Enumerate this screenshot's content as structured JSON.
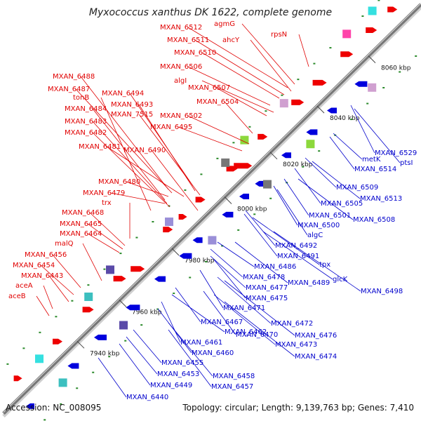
{
  "title": "Myxococcus xanthus DK 1622, complete genome",
  "accession": "Accession: NC_008095",
  "summary": "Topology: circular; Length: 9,139,763 bp; Genes: 7,410",
  "colors": {
    "forward_label": "#e00000",
    "reverse_label": "#0000cc",
    "forward_gene": "#ee0000",
    "reverse_gene": "#0000dd",
    "backbone": "#777777",
    "orf_marker": "#2a8a2a"
  },
  "kbp_ticks": [
    "7940 kbp",
    "7960 kbp",
    "7980 kbp",
    "8000 kbp",
    "8020 kbp",
    "8040 kbp",
    "8060 kbp"
  ],
  "forward_labels": [
    "MXAN_6512",
    "agmG",
    "rpsN",
    "MXAN_6511",
    "ahcY",
    "MXAN_6510",
    "MXAN_6506",
    "algI",
    "MXAN_6507",
    "MXAN_6504",
    "MXAN_6488",
    "MXAN_6487",
    "tonB",
    "MXAN_6494",
    "MXAN_6493",
    "MXAN_7515",
    "MXAN_6502",
    "MXAN_6495",
    "MXAN_6484",
    "MXAN_6483",
    "MXAN_6482",
    "MXAN_6481",
    "MXAN_6490",
    "MXAN_6480",
    "MXAN_6479",
    "trx",
    "MXAN_6468",
    "MXAN_6465",
    "MXAN_6464",
    "malQ",
    "MXAN_6456",
    "MXAN_6454",
    "MXAN_6443",
    "aceA",
    "aceB"
  ],
  "reverse_labels": [
    "MXAN_6529",
    "ptsI",
    "metK",
    "MXAN_6514",
    "MXAN_6509",
    "MXAN_6513",
    "MXAN_6505",
    "MXAN_6501",
    "MXAN_6508",
    "MXAN_6500",
    "algC",
    "MXAN_6492",
    "MXAN_6491",
    "tpx",
    "MXAN_6486",
    "glcK",
    "MXAN_6478",
    "MXAN_6489",
    "MXAN_6498",
    "MXAN_6477",
    "MXAN_6475",
    "MXAN_6471",
    "MXAN_6467",
    "MXAN_6472",
    "MXAN_6462",
    "MXAN_6476",
    "MXAN_6470",
    "MXAN_6461",
    "MXAN_6473",
    "MXAN_6460",
    "MXAN_6474",
    "MXAN_6455",
    "MXAN_6453",
    "MXAN_6458",
    "MXAN_6449",
    "MXAN_6457",
    "MXAN_6440"
  ]
}
